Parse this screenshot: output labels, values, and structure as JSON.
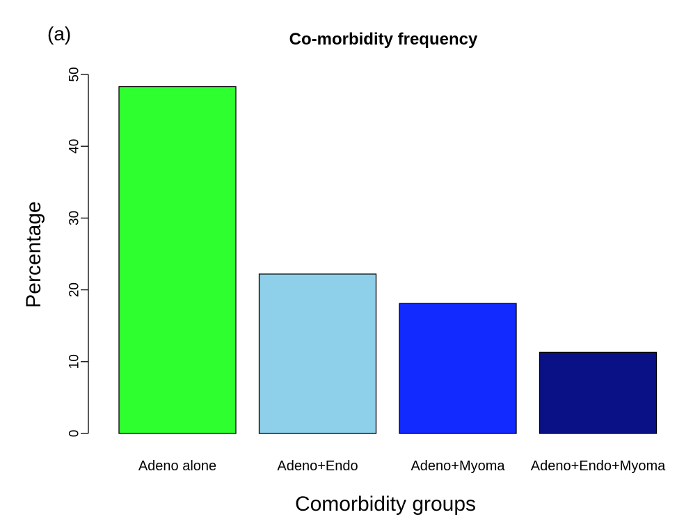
{
  "chart_data": {
    "type": "bar",
    "panel_label": "(a)",
    "title": "Co-morbidity frequency",
    "xlabel": "Comorbidity groups",
    "ylabel": "Percentage",
    "categories": [
      "Adeno alone",
      "Adeno+Endo",
      "Adeno+Myoma",
      "Adeno+Endo+Myoma"
    ],
    "values": [
      48.3,
      22.2,
      18.1,
      11.3
    ],
    "colors": [
      "#2eff2e",
      "#8ecfea",
      "#1229ff",
      "#0a1187"
    ],
    "ylim": [
      0,
      50
    ],
    "yticks": [
      0,
      10,
      20,
      30,
      40,
      50
    ],
    "grid": false,
    "legend": "none"
  }
}
